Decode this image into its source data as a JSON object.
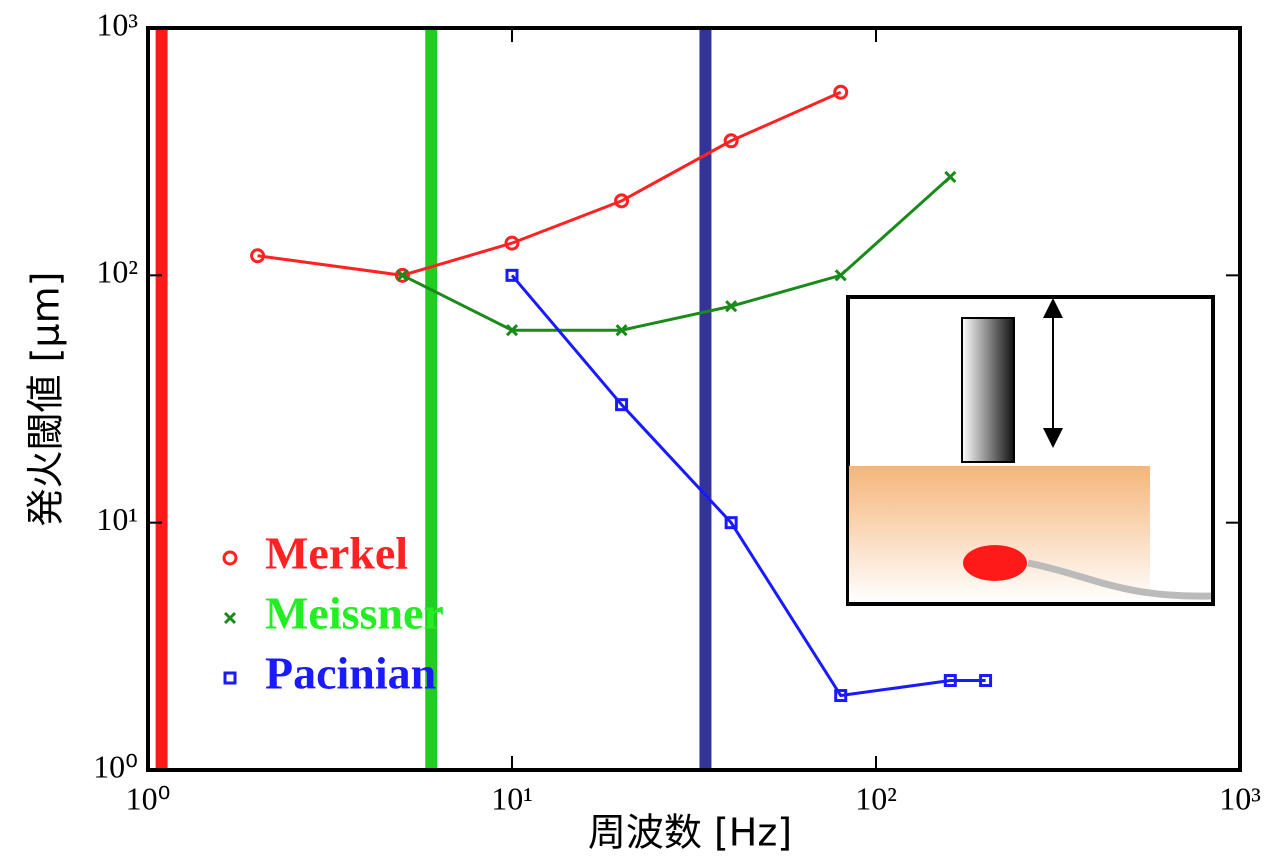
{
  "chart_data": {
    "type": "line",
    "xlabel": "周波数 [Hz]",
    "ylabel": "発火閾値 [µm]",
    "xscale": "log",
    "yscale": "log",
    "xlim": [
      1,
      1000
    ],
    "ylim": [
      1,
      1000
    ],
    "xticks": [
      {
        "value": 1,
        "label": "10⁰"
      },
      {
        "value": 10,
        "label": "10¹"
      },
      {
        "value": 100,
        "label": "10²"
      },
      {
        "value": 1000,
        "label": "10³"
      }
    ],
    "yticks": [
      {
        "value": 1,
        "label": "10⁰"
      },
      {
        "value": 10,
        "label": "10¹"
      },
      {
        "value": 100,
        "label": "10²"
      },
      {
        "value": 1000,
        "label": "10³"
      }
    ],
    "legend": "lower left",
    "series": [
      {
        "name": "Merkel",
        "color": "#ff2222",
        "legend_color": "#ff2222",
        "marker": "circle",
        "x": [
          2,
          5,
          10,
          20,
          40,
          80
        ],
        "values": [
          120,
          100,
          135,
          200,
          350,
          550
        ]
      },
      {
        "name": "Meissner",
        "color": "#1a8a1a",
        "legend_color": "#22ee22",
        "marker": "x",
        "x": [
          5,
          10,
          20,
          40,
          80,
          160
        ],
        "values": [
          100,
          60,
          60,
          75,
          100,
          250
        ]
      },
      {
        "name": "Pacinian",
        "color": "#1a1aff",
        "legend_color": "#1a1aff",
        "marker": "square",
        "x": [
          10,
          20,
          40,
          80,
          160,
          200
        ],
        "values": [
          100,
          30,
          10,
          2,
          2.3,
          2.3
        ]
      }
    ],
    "vlines": [
      {
        "x": 1.09,
        "color": "#ff1a1a"
      },
      {
        "x": 6,
        "color": "#22cc22"
      },
      {
        "x": 34,
        "color": "#333399"
      }
    ]
  }
}
